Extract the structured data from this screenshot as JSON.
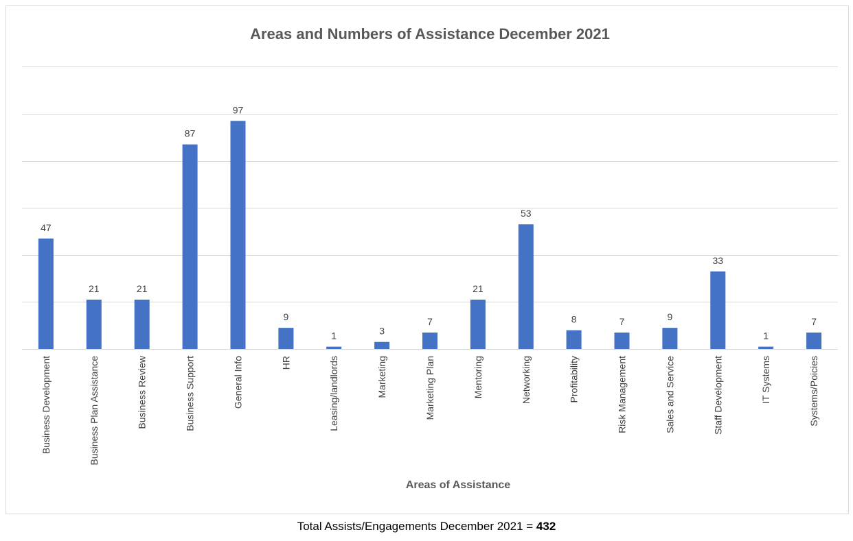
{
  "chart_data": {
    "type": "bar",
    "title": "Areas and Numbers of Assistance December 2021",
    "xlabel": "Areas of Assistance",
    "ylabel": "",
    "ylim": [
      0,
      120
    ],
    "grid": true,
    "legend": "none",
    "bar_color": "#4472c4",
    "categories": [
      "Business Development",
      "Business Plan Assistance",
      "Business Review",
      "Business Support",
      "General Info",
      "HR",
      "Leasing/landlords",
      "Marketing",
      "Marketing Plan",
      "Mentoring",
      "Networking",
      "Profitability",
      "Risk Management",
      "Sales and Service",
      "Staff Development",
      "IT Systems",
      "Systems/Poicies"
    ],
    "values": [
      47,
      21,
      21,
      87,
      97,
      9,
      1,
      3,
      7,
      21,
      53,
      8,
      7,
      9,
      33,
      1,
      7
    ]
  },
  "footer": {
    "text": "Total Assists/Engagements December 2021 = ",
    "total": "432"
  }
}
